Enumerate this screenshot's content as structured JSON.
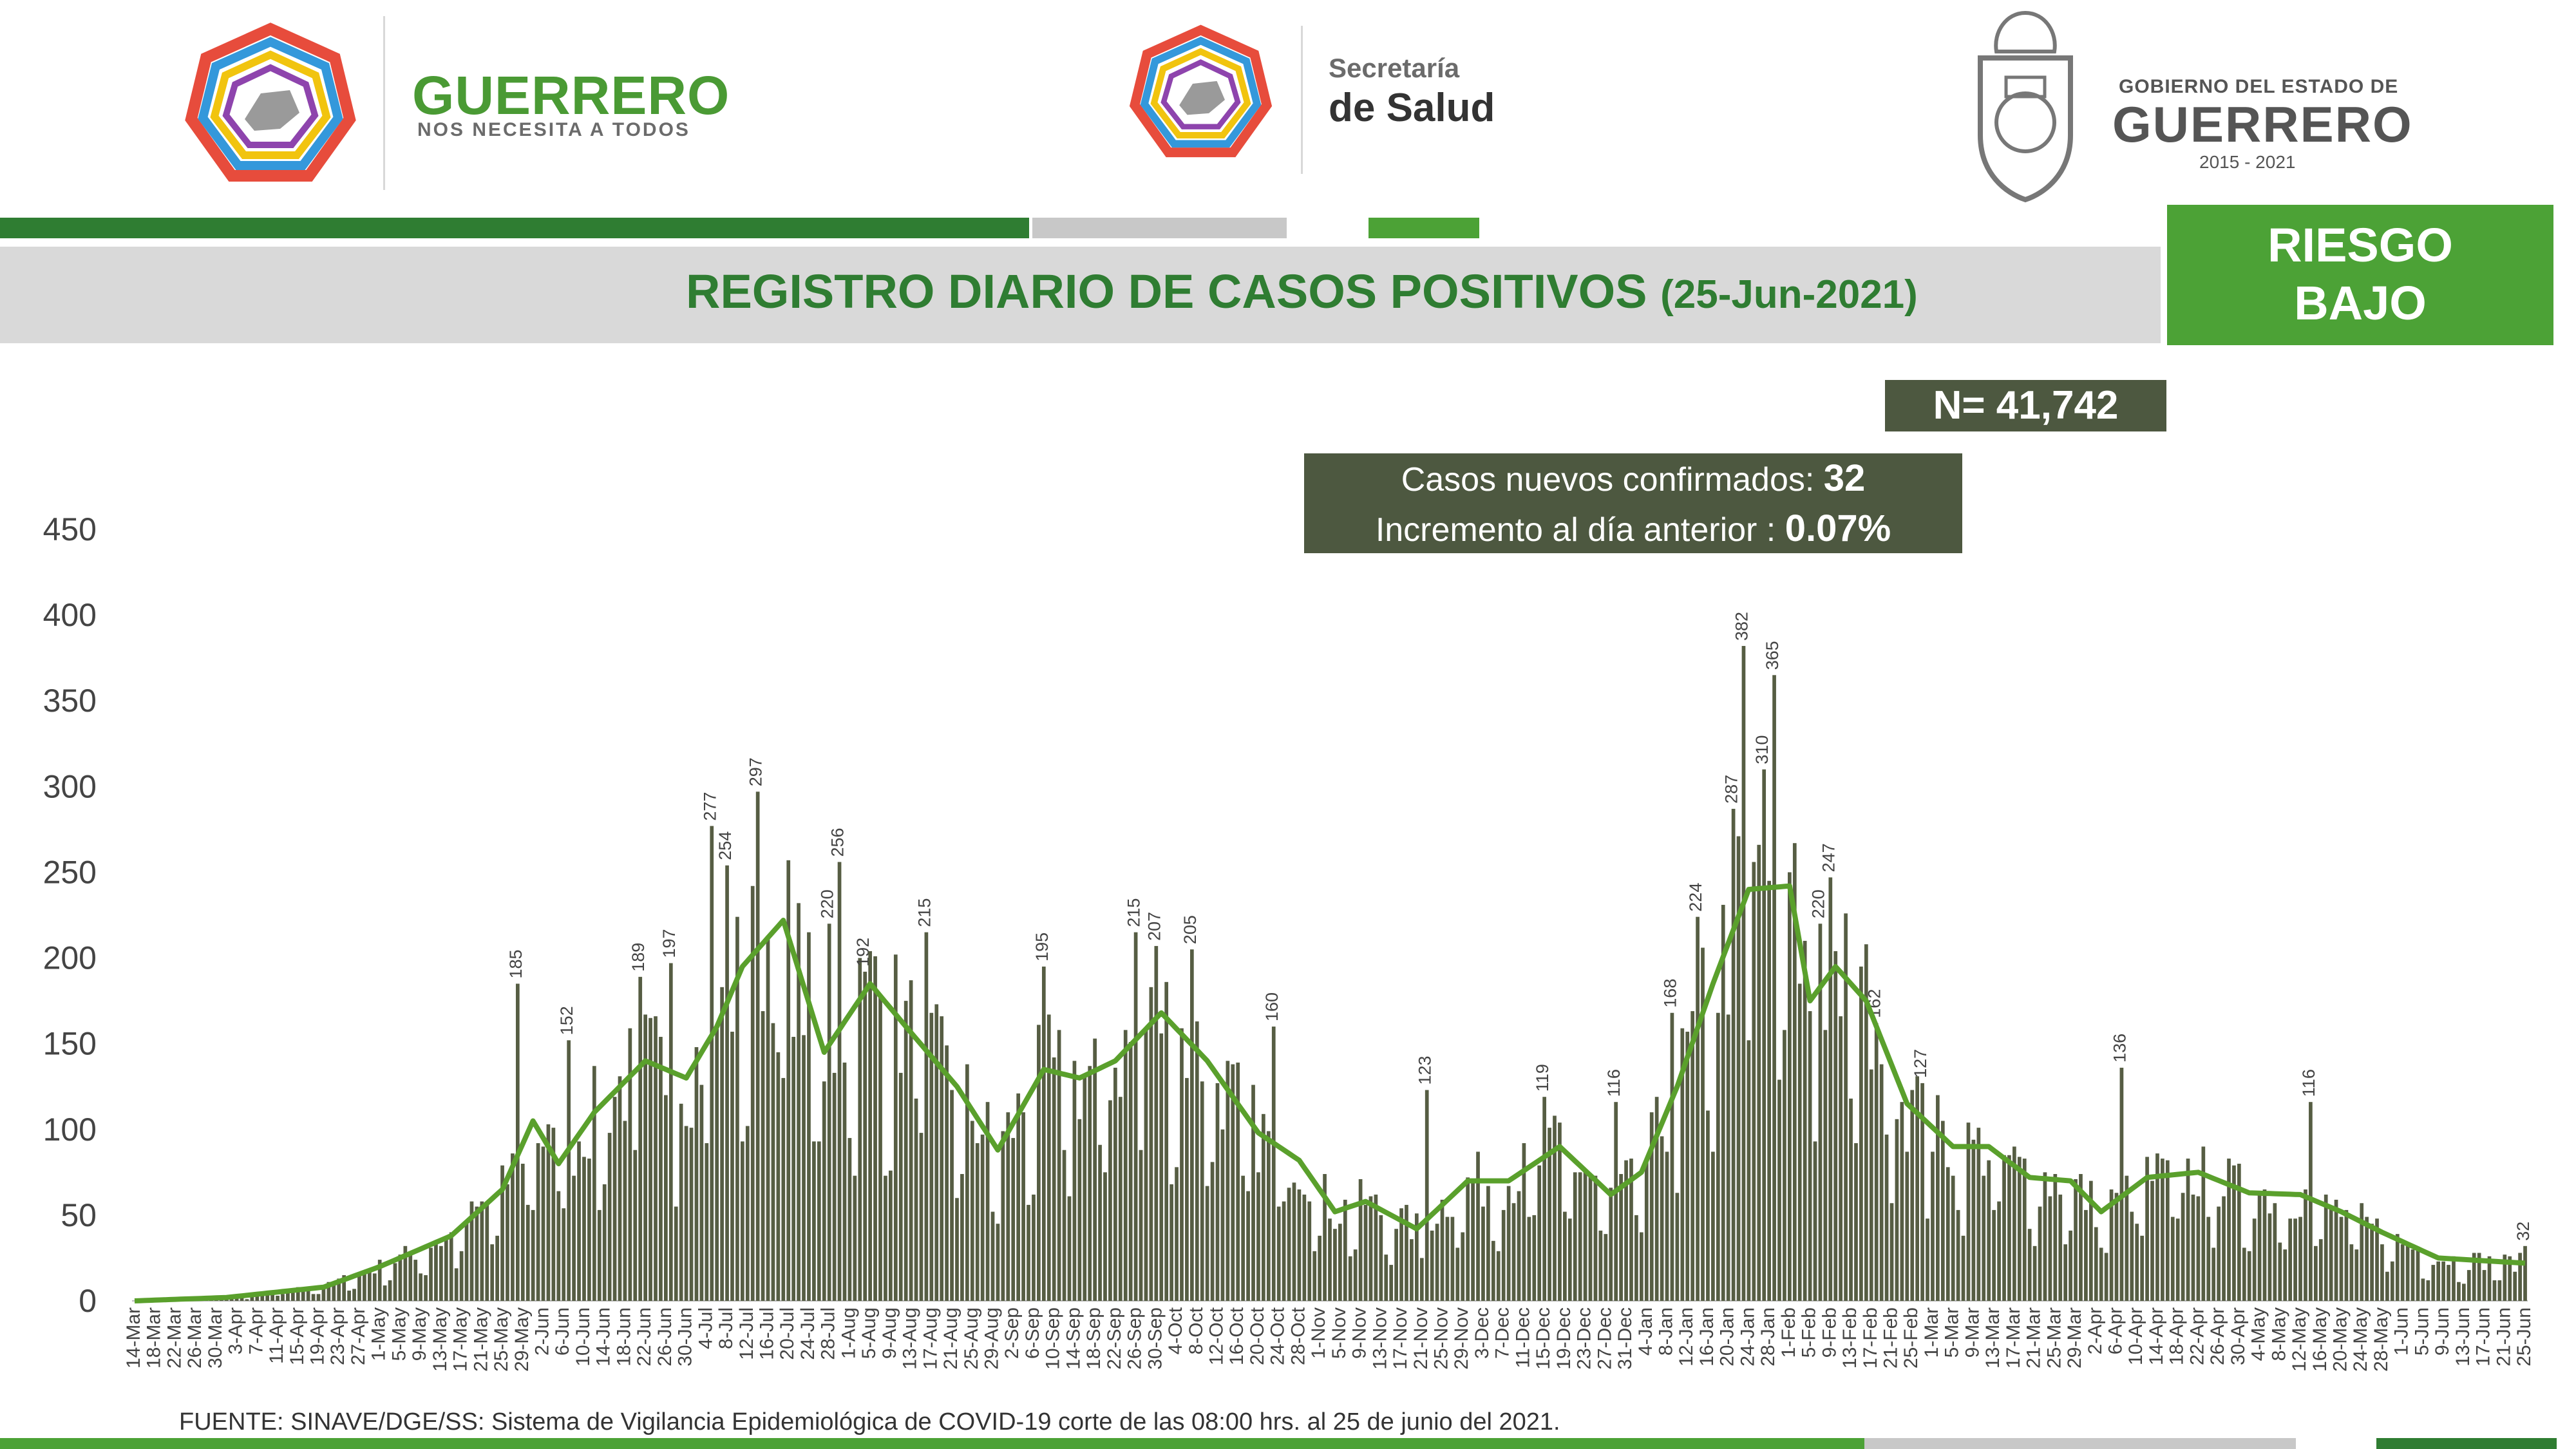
{
  "header": {
    "brand_name": "GUERRERO",
    "brand_tagline": "NOS NECESITA A TODOS",
    "salud_line1": "Secretaría",
    "salud_line2": "de Salud",
    "gov_line1": "GOBIERNO DEL ESTADO DE",
    "gov_line2": "GUERRERO",
    "gov_years": "2015 - 2021",
    "logo_icon": "guerrero-star-logo",
    "seal_icon": "state-coat-of-arms"
  },
  "title": {
    "main": "REGISTRO DIARIO DE CASOS POSITIVOS",
    "date": "(25-Jun-2021)"
  },
  "risk": {
    "line1": "RIESGO",
    "line2": "BAJO"
  },
  "total": "N= 41,742",
  "new_cases": {
    "label1": "Casos nuevos confirmados:",
    "value1": "32",
    "label2": "Incremento al día anterior :",
    "value2": "0.07%"
  },
  "source": "FUENTE: SINAVE/DGE/SS: Sistema de Vigilancia Epidemiológica de COVID-19 corte de las 08:00 hrs. al 25 de junio del 2021.",
  "colors": {
    "green_dark": "#2f7d32",
    "green_accent": "#4ca236",
    "bar_fill": "#565d43",
    "gray_band": "#d9d9d9",
    "moving_average": "#5aa02c"
  },
  "chart_data": {
    "type": "bar",
    "title": "REGISTRO DIARIO DE CASOS POSITIVOS",
    "ylim": [
      0,
      450
    ],
    "yticks": [
      0,
      50,
      100,
      150,
      200,
      250,
      300,
      350,
      400,
      450
    ],
    "x_start": "2020-03-14",
    "x_end": "2021-06-25",
    "xtick_labels": [
      "14-Mar",
      "18-Mar",
      "22-Mar",
      "26-Mar",
      "30-Mar",
      "3-Apr",
      "7-Apr",
      "11-Apr",
      "15-Apr",
      "19-Apr",
      "23-Apr",
      "27-Apr",
      "1-May",
      "5-May",
      "9-May",
      "13-May",
      "17-May",
      "21-May",
      "25-May",
      "29-May",
      "2-Jun",
      "6-Jun",
      "10-Jun",
      "14-Jun",
      "18-Jun",
      "22-Jun",
      "26-Jun",
      "30-Jun",
      "4-Jul",
      "8-Jul",
      "12-Jul",
      "16-Jul",
      "20-Jul",
      "24-Jul",
      "28-Jul",
      "1-Aug",
      "5-Aug",
      "9-Aug",
      "13-Aug",
      "17-Aug",
      "21-Aug",
      "25-Aug",
      "29-Aug",
      "2-Sep",
      "6-Sep",
      "10-Sep",
      "14-Sep",
      "18-Sep",
      "22-Sep",
      "26-Sep",
      "30-Sep",
      "4-Oct",
      "8-Oct",
      "12-Oct",
      "16-Oct",
      "20-Oct",
      "24-Oct",
      "28-Oct",
      "1-Nov",
      "5-Nov",
      "9-Nov",
      "13-Nov",
      "17-Nov",
      "21-Nov",
      "25-Nov",
      "29-Nov",
      "3-Dec",
      "7-Dec",
      "11-Dec",
      "15-Dec",
      "19-Dec",
      "23-Dec",
      "27-Dec",
      "31-Dec",
      "4-Jan",
      "8-Jan",
      "12-Jan",
      "16-Jan",
      "20-Jan",
      "24-Jan",
      "28-Jan",
      "1-Feb",
      "5-Feb",
      "9-Feb",
      "13-Feb",
      "17-Feb",
      "21-Feb",
      "25-Feb",
      "1-Mar",
      "5-Mar",
      "9-Mar",
      "13-Mar",
      "17-Mar",
      "21-Mar",
      "25-Mar",
      "29-Mar",
      "2-Apr",
      "6-Apr",
      "10-Apr",
      "14-Apr",
      "18-Apr",
      "22-Apr",
      "26-Apr",
      "30-Apr",
      "4-May",
      "8-May",
      "12-May",
      "16-May",
      "20-May",
      "24-May",
      "28-May",
      "1-Jun",
      "5-Jun",
      "9-Jun",
      "13-Jun",
      "17-Jun",
      "21-Jun",
      "25-Jun"
    ],
    "labeled_peaks": [
      {
        "date": "2020-05-28",
        "value": 185
      },
      {
        "date": "2020-06-07",
        "value": 152
      },
      {
        "date": "2020-06-21",
        "value": 189
      },
      {
        "date": "2020-06-27",
        "value": 197
      },
      {
        "date": "2020-07-05",
        "value": 277
      },
      {
        "date": "2020-07-08",
        "value": 254
      },
      {
        "date": "2020-07-14",
        "value": 297
      },
      {
        "date": "2020-07-28",
        "value": 220
      },
      {
        "date": "2020-07-30",
        "value": 256
      },
      {
        "date": "2020-08-04",
        "value": 192
      },
      {
        "date": "2020-08-16",
        "value": 215
      },
      {
        "date": "2020-09-08",
        "value": 195
      },
      {
        "date": "2020-09-26",
        "value": 215
      },
      {
        "date": "2020-09-30",
        "value": 207
      },
      {
        "date": "2020-10-07",
        "value": 205
      },
      {
        "date": "2020-10-23",
        "value": 160
      },
      {
        "date": "2020-11-22",
        "value": 123
      },
      {
        "date": "2020-12-15",
        "value": 119
      },
      {
        "date": "2020-12-29",
        "value": 116
      },
      {
        "date": "2021-01-09",
        "value": 168
      },
      {
        "date": "2021-01-14",
        "value": 224
      },
      {
        "date": "2021-01-21",
        "value": 287
      },
      {
        "date": "2021-01-23",
        "value": 382
      },
      {
        "date": "2021-01-27",
        "value": 310
      },
      {
        "date": "2021-01-29",
        "value": 365
      },
      {
        "date": "2021-02-07",
        "value": 220
      },
      {
        "date": "2021-02-09",
        "value": 247
      },
      {
        "date": "2021-02-18",
        "value": 162
      },
      {
        "date": "2021-02-27",
        "value": 127
      },
      {
        "date": "2021-04-07",
        "value": 136
      },
      {
        "date": "2021-05-14",
        "value": 116
      },
      {
        "date": "2021-06-25",
        "value": 32
      }
    ],
    "moving_average_anchors": [
      {
        "date": "2020-03-14",
        "value": 0
      },
      {
        "date": "2020-04-01",
        "value": 2
      },
      {
        "date": "2020-04-20",
        "value": 8
      },
      {
        "date": "2020-05-01",
        "value": 20
      },
      {
        "date": "2020-05-15",
        "value": 38
      },
      {
        "date": "2020-05-25",
        "value": 65
      },
      {
        "date": "2020-05-31",
        "value": 105
      },
      {
        "date": "2020-06-05",
        "value": 80
      },
      {
        "date": "2020-06-12",
        "value": 110
      },
      {
        "date": "2020-06-22",
        "value": 140
      },
      {
        "date": "2020-06-30",
        "value": 130
      },
      {
        "date": "2020-07-06",
        "value": 160
      },
      {
        "date": "2020-07-11",
        "value": 195
      },
      {
        "date": "2020-07-19",
        "value": 222
      },
      {
        "date": "2020-07-27",
        "value": 145
      },
      {
        "date": "2020-08-05",
        "value": 185
      },
      {
        "date": "2020-08-12",
        "value": 160
      },
      {
        "date": "2020-08-22",
        "value": 125
      },
      {
        "date": "2020-08-30",
        "value": 88
      },
      {
        "date": "2020-09-08",
        "value": 135
      },
      {
        "date": "2020-09-15",
        "value": 130
      },
      {
        "date": "2020-09-22",
        "value": 140
      },
      {
        "date": "2020-10-01",
        "value": 168
      },
      {
        "date": "2020-10-10",
        "value": 140
      },
      {
        "date": "2020-10-20",
        "value": 98
      },
      {
        "date": "2020-10-28",
        "value": 82
      },
      {
        "date": "2020-11-04",
        "value": 52
      },
      {
        "date": "2020-11-10",
        "value": 58
      },
      {
        "date": "2020-11-20",
        "value": 42
      },
      {
        "date": "2020-11-30",
        "value": 70
      },
      {
        "date": "2020-12-08",
        "value": 70
      },
      {
        "date": "2020-12-18",
        "value": 90
      },
      {
        "date": "2020-12-28",
        "value": 62
      },
      {
        "date": "2021-01-03",
        "value": 75
      },
      {
        "date": "2021-01-10",
        "value": 125
      },
      {
        "date": "2021-01-17",
        "value": 185
      },
      {
        "date": "2021-01-24",
        "value": 240
      },
      {
        "date": "2021-02-01",
        "value": 242
      },
      {
        "date": "2021-02-05",
        "value": 175
      },
      {
        "date": "2021-02-10",
        "value": 195
      },
      {
        "date": "2021-02-16",
        "value": 175
      },
      {
        "date": "2021-02-24",
        "value": 115
      },
      {
        "date": "2021-03-05",
        "value": 90
      },
      {
        "date": "2021-03-12",
        "value": 90
      },
      {
        "date": "2021-03-20",
        "value": 72
      },
      {
        "date": "2021-03-28",
        "value": 70
      },
      {
        "date": "2021-04-03",
        "value": 52
      },
      {
        "date": "2021-04-12",
        "value": 72
      },
      {
        "date": "2021-04-22",
        "value": 75
      },
      {
        "date": "2021-05-02",
        "value": 63
      },
      {
        "date": "2021-05-12",
        "value": 62
      },
      {
        "date": "2021-05-20",
        "value": 52
      },
      {
        "date": "2021-05-28",
        "value": 40
      },
      {
        "date": "2021-06-08",
        "value": 25
      },
      {
        "date": "2021-06-25",
        "value": 22
      }
    ]
  }
}
